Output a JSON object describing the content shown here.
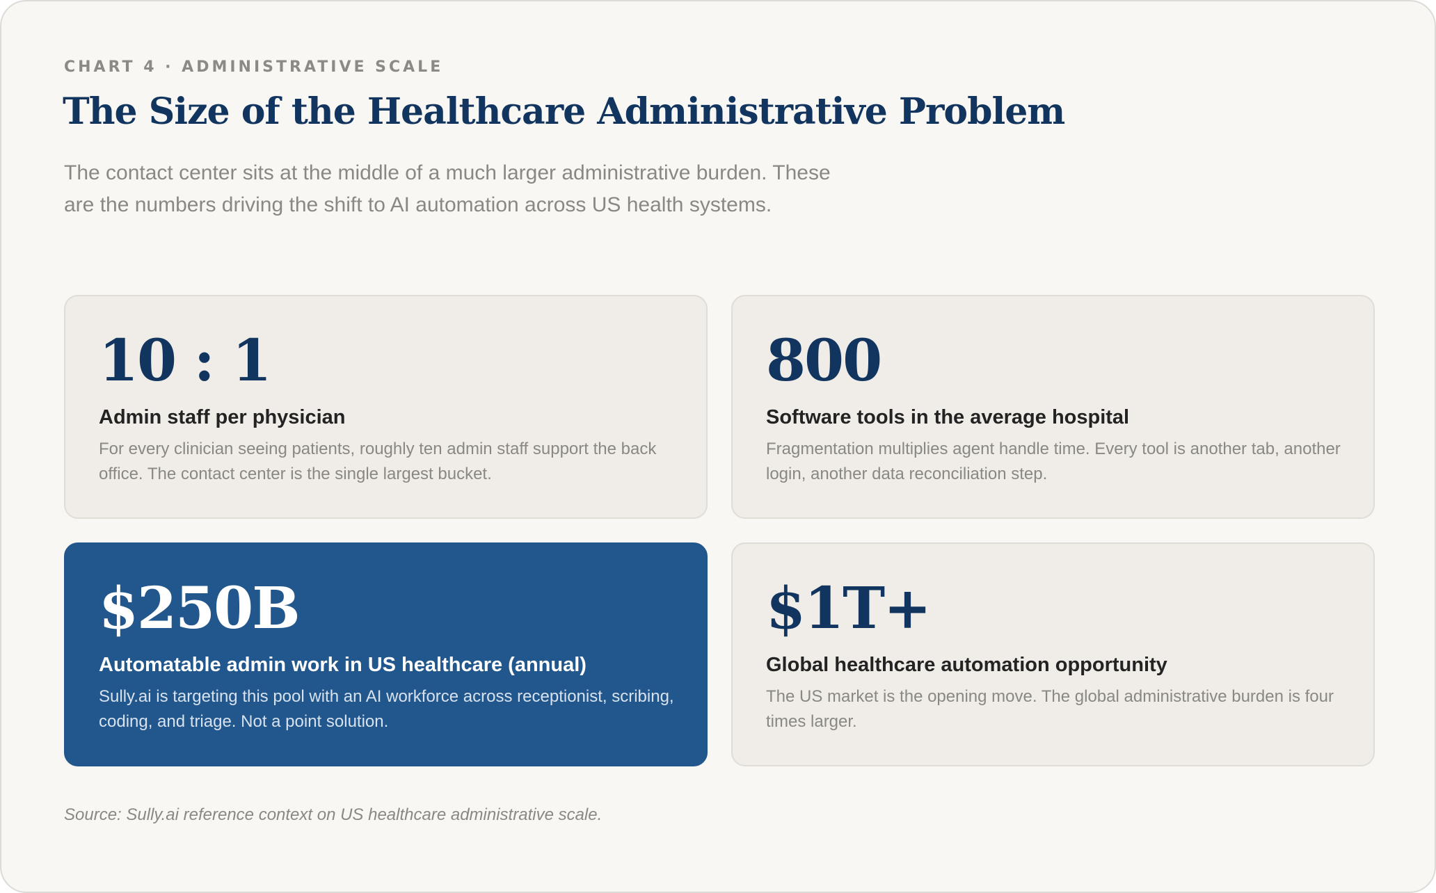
{
  "chart_data": {
    "type": "table",
    "eyebrow": "CHART 4 · ADMINISTRATIVE SCALE",
    "title": "The Size of the Healthcare Administrative Problem",
    "subtitle": "The contact center sits at the middle of a much larger administrative burden. These are the numbers driving the shift to AI automation across US health systems.",
    "cards": [
      {
        "stat": "10 : 1",
        "label": "Admin staff per physician",
        "description": "For every clinician seeing patients, roughly ten admin staff support the back office. The contact center is the single largest bucket.",
        "highlight": false
      },
      {
        "stat": "800",
        "label": "Software tools in the average hospital",
        "description": "Fragmentation multiplies agent handle time. Every tool is another tab, another login, another data reconciliation step.",
        "highlight": false
      },
      {
        "stat": "$250B",
        "label": "Automatable admin work in US healthcare (annual)",
        "description": "Sully.ai is targeting this pool with an AI workforce across receptionist, scribing, coding, and triage. Not a point solution.",
        "highlight": true
      },
      {
        "stat": "$1T+",
        "label": "Global healthcare automation opportunity",
        "description": "The US market is the opening move. The global administrative burden is four times larger.",
        "highlight": false
      }
    ],
    "source": "Source: Sully.ai reference context on US healthcare administrative scale."
  },
  "colors": {
    "background": "#f8f7f3",
    "card": "#f0ede8",
    "highlight_card": "#21578c",
    "stat_text": "#12355f",
    "muted_text": "#8a8883"
  }
}
